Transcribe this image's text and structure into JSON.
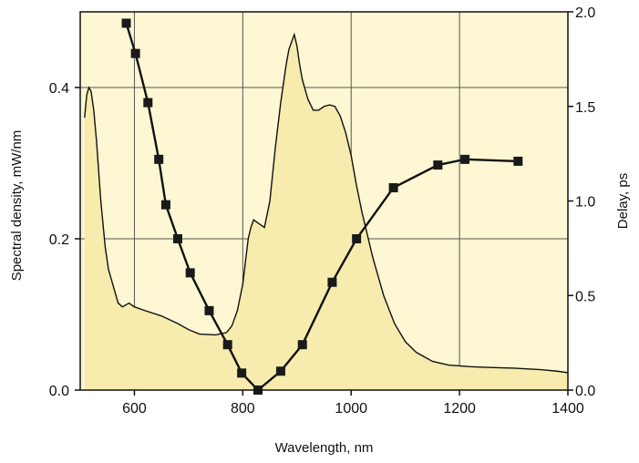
{
  "chart_data": {
    "type": "area",
    "xlabel": "Wavelength, nm",
    "ylabel": "Spectral density, mW/nm",
    "y2label": "Delay, ps",
    "xlim": [
      500,
      1400
    ],
    "ylim": [
      0,
      0.5
    ],
    "y2lim": [
      0,
      2.0
    ],
    "x_ticks": [
      "600",
      "800",
      "1000",
      "1200",
      "1400"
    ],
    "y_ticks": [
      "0.0",
      "0.2",
      "0.4"
    ],
    "y2_ticks": [
      "0.0",
      "0.5",
      "1.0",
      "1.5",
      "2.0"
    ],
    "grid": true,
    "colors": {
      "plot_background": "#fdf7d4",
      "fill": "#f7ebad",
      "line": "#111111",
      "marker": "#1a1a1a"
    },
    "series": [
      {
        "axis": "left",
        "type": "area",
        "x": [
          508,
          512,
          516,
          520,
          525,
          530,
          538,
          546,
          552,
          560,
          570,
          578,
          590,
          600,
          620,
          650,
          680,
          700,
          720,
          750,
          770,
          780,
          790,
          800,
          805,
          810,
          815,
          820,
          830,
          840,
          850,
          860,
          870,
          880,
          885,
          890,
          895,
          900,
          905,
          910,
          920,
          930,
          940,
          950,
          960,
          970,
          980,
          990,
          1000,
          1010,
          1020,
          1040,
          1060,
          1080,
          1100,
          1120,
          1150,
          1180,
          1200,
          1220,
          1250,
          1300,
          1350,
          1380,
          1400
        ],
        "y": [
          0.36,
          0.39,
          0.4,
          0.395,
          0.37,
          0.33,
          0.25,
          0.19,
          0.16,
          0.14,
          0.115,
          0.11,
          0.115,
          0.11,
          0.105,
          0.098,
          0.088,
          0.08,
          0.074,
          0.073,
          0.076,
          0.085,
          0.105,
          0.14,
          0.17,
          0.2,
          0.215,
          0.225,
          0.22,
          0.215,
          0.25,
          0.32,
          0.38,
          0.43,
          0.45,
          0.46,
          0.47,
          0.455,
          0.43,
          0.41,
          0.385,
          0.37,
          0.37,
          0.375,
          0.377,
          0.375,
          0.362,
          0.34,
          0.31,
          0.27,
          0.235,
          0.175,
          0.125,
          0.088,
          0.064,
          0.05,
          0.038,
          0.033,
          0.032,
          0.031,
          0.03,
          0.029,
          0.027,
          0.025,
          0.023
        ]
      },
      {
        "axis": "right",
        "type": "line",
        "marker": "square",
        "x": [
          585,
          602,
          625,
          645,
          658,
          680,
          703,
          738,
          772,
          798,
          828,
          870,
          910,
          965,
          1010,
          1078,
          1160,
          1210,
          1308
        ],
        "y": [
          1.94,
          1.78,
          1.52,
          1.22,
          0.98,
          0.8,
          0.62,
          0.42,
          0.24,
          0.09,
          0.0,
          0.1,
          0.24,
          0.57,
          0.8,
          1.07,
          1.19,
          1.22,
          1.21
        ]
      }
    ]
  }
}
